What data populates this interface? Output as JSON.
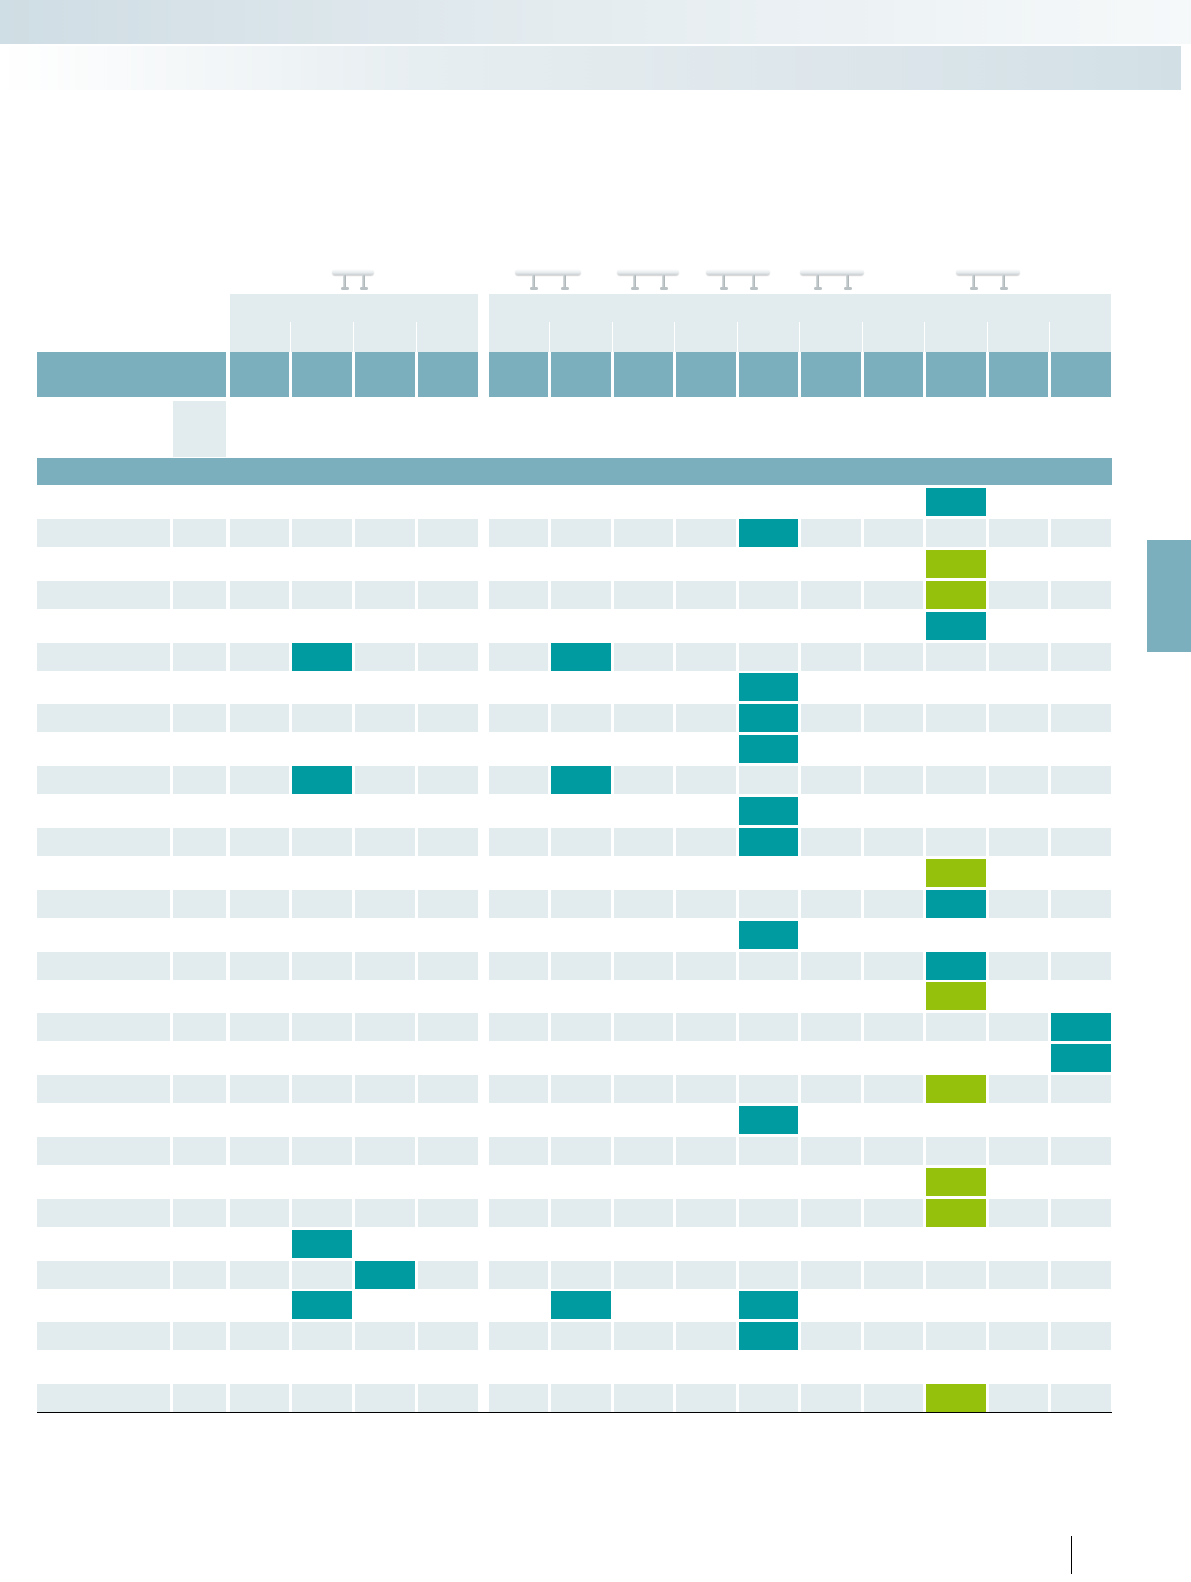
{
  "colors": {
    "header": "#7bafbe",
    "row_shade": "#e2ebee",
    "teal": "#009aa1",
    "lime": "#95c00b"
  },
  "header": {
    "product_thumbnails": [
      "radiator-icon",
      "radiator-icon",
      "radiator-icon",
      "radiator-icon",
      "radiator-icon",
      "radiator-icon"
    ],
    "column_groups": [
      {
        "columns": 4
      },
      {
        "columns": 10
      }
    ]
  },
  "matrix": {
    "columns": 14,
    "rows": [
      {
        "teal": [
          11
        ],
        "lime": []
      },
      {
        "teal": [
          8
        ],
        "lime": []
      },
      {
        "teal": [],
        "lime": [
          11
        ]
      },
      {
        "teal": [],
        "lime": [
          11
        ]
      },
      {
        "teal": [
          11
        ],
        "lime": []
      },
      {
        "teal": [
          1,
          5
        ],
        "lime": []
      },
      {
        "teal": [
          8
        ],
        "lime": []
      },
      {
        "teal": [
          8
        ],
        "lime": []
      },
      {
        "teal": [
          8
        ],
        "lime": []
      },
      {
        "teal": [
          1,
          5
        ],
        "lime": []
      },
      {
        "teal": [
          8
        ],
        "lime": []
      },
      {
        "teal": [
          8
        ],
        "lime": []
      },
      {
        "teal": [],
        "lime": [
          11
        ]
      },
      {
        "teal": [
          11
        ],
        "lime": []
      },
      {
        "teal": [
          8
        ],
        "lime": []
      },
      {
        "teal": [
          11
        ],
        "lime": []
      },
      {
        "teal": [],
        "lime": [
          11
        ]
      },
      {
        "teal": [
          13
        ],
        "lime": []
      },
      {
        "teal": [
          13
        ],
        "lime": []
      },
      {
        "teal": [],
        "lime": [
          11
        ]
      },
      {
        "teal": [
          8
        ],
        "lime": []
      },
      {
        "teal": [],
        "lime": []
      },
      {
        "teal": [],
        "lime": [
          11
        ]
      },
      {
        "teal": [],
        "lime": [
          11
        ]
      },
      {
        "teal": [
          1
        ],
        "lime": []
      },
      {
        "teal": [
          2
        ],
        "lime": []
      },
      {
        "teal": [
          1,
          5,
          8
        ],
        "lime": []
      },
      {
        "teal": [
          8
        ],
        "lime": []
      },
      {
        "teal": [],
        "lime": []
      },
      {
        "teal": [],
        "lime": [
          11
        ]
      }
    ]
  }
}
